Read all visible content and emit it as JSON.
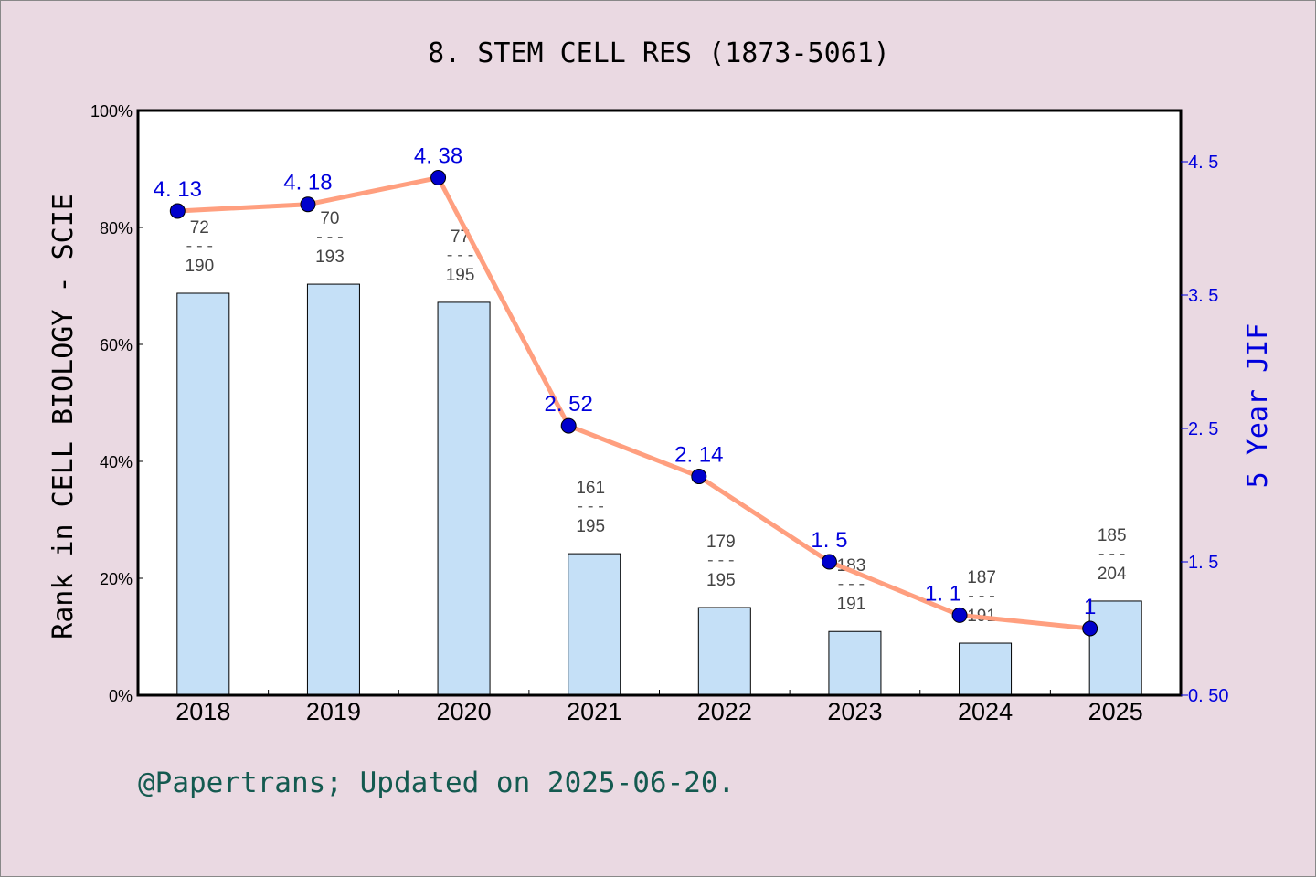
{
  "chart_data": {
    "type": "bar+line",
    "title": "8. STEM CELL RES (1873-5061)",
    "ylabel": "Rank in CELL BIOLOGY - SCIE",
    "y2label": "5 Year JIF",
    "categories": [
      "2018",
      "2019",
      "2020",
      "2021",
      "2022",
      "2023",
      "2024",
      "2025"
    ],
    "bar_values_percent": [
      68.75,
      70.3,
      67.2,
      24.2,
      15.0,
      10.9,
      8.9,
      16.1
    ],
    "rank_labels": [
      {
        "rank": "72",
        "total": "190"
      },
      {
        "rank": "70",
        "total": "193"
      },
      {
        "rank": "77",
        "total": "195"
      },
      {
        "rank": "161",
        "total": "195"
      },
      {
        "rank": "179",
        "total": "195"
      },
      {
        "rank": "183",
        "total": "191"
      },
      {
        "rank": "187",
        "total": "191"
      },
      {
        "rank": "185",
        "total": "204"
      }
    ],
    "jif_values": [
      4.13,
      4.18,
      4.38,
      2.52,
      2.14,
      1.5,
      1.1,
      1
    ],
    "jif_labels": [
      "4.13",
      "4.18",
      "4.38",
      "2.52",
      "2.14",
      "1.5",
      "1.1",
      "1"
    ],
    "ylim": [
      0,
      100
    ],
    "y2lim": [
      0.5,
      4.89
    ],
    "yticks": [
      "0%",
      "20%",
      "40%",
      "60%",
      "80%",
      "100%"
    ],
    "y2ticks": [
      "0.50",
      "1.5",
      "2.5",
      "3.5",
      "4.5"
    ],
    "colors": {
      "bar": "#c5e0f7",
      "line": "#ff9f7f",
      "point": "#0000cc",
      "jif_text": "#0000dd",
      "rank_text": "#444444",
      "footer": "#145a50",
      "background": "#ead9e2"
    }
  },
  "footer": "@Papertrans; Updated on 2025-06-20."
}
